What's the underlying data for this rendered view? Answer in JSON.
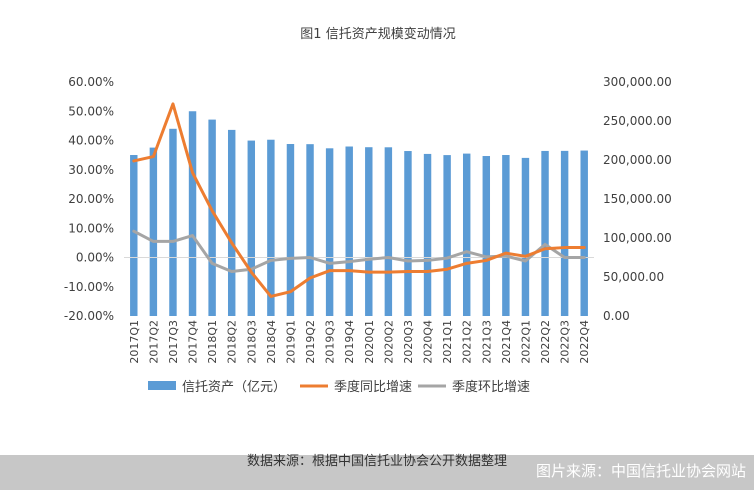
{
  "chart_data": {
    "type": "bar",
    "title": "图1 信托资产规模变动情况",
    "categories": [
      "2017Q1",
      "2017Q2",
      "2017Q3",
      "2017Q4",
      "2018Q1",
      "2018Q2",
      "2018Q3",
      "2018Q4",
      "2019Q1",
      "2019Q2",
      "2019Q3",
      "2019Q4",
      "2020Q1",
      "2020Q2",
      "2020Q3",
      "2020Q4",
      "2021Q1",
      "2021Q2",
      "2021Q3",
      "2021Q4",
      "2022Q1",
      "2022Q2",
      "2022Q3",
      "2022Q4"
    ],
    "left_axis": {
      "min": -0.2,
      "max": 0.6,
      "step": 0.1,
      "tick_labels": [
        "-20.00%",
        "-10.00%",
        "0.00%",
        "10.00%",
        "20.00%",
        "30.00%",
        "40.00%",
        "50.00%",
        "60.00%"
      ]
    },
    "right_axis": {
      "min": 0,
      "max": 300000,
      "step": 50000,
      "tick_labels": [
        "0.00",
        "50,000.00",
        "100,000.00",
        "150,000.00",
        "200,000.00",
        "250,000.00",
        "300,000.00"
      ]
    },
    "grid": false,
    "legend_position": "bottom",
    "series": [
      {
        "name": "信托资产（亿元）",
        "kind": "bar",
        "axis": "right",
        "color": "#5b9bd5",
        "values": [
          206400,
          215900,
          240000,
          262500,
          251800,
          238600,
          224900,
          226000,
          220500,
          220300,
          215000,
          217300,
          216400,
          216300,
          211500,
          207800,
          206300,
          208200,
          205100,
          206400,
          202700,
          211600,
          211700,
          212100
        ]
      },
      {
        "name": "季度同比增速",
        "kind": "line",
        "axis": "left",
        "color": "#ed7d31",
        "values": [
          0.33,
          0.345,
          0.525,
          0.29,
          0.16,
          0.05,
          -0.05,
          -0.133,
          -0.117,
          -0.07,
          -0.045,
          -0.045,
          -0.05,
          -0.05,
          -0.048,
          -0.048,
          -0.04,
          -0.02,
          -0.01,
          0.015,
          0.004,
          0.03,
          0.034,
          0.034
        ]
      },
      {
        "name": "季度环比增速",
        "kind": "line",
        "axis": "left",
        "color": "#a5a5a5",
        "values": [
          0.09,
          0.055,
          0.055,
          0.075,
          -0.02,
          -0.048,
          -0.04,
          -0.01,
          -0.003,
          0.0,
          -0.02,
          -0.014,
          -0.006,
          0.0,
          -0.012,
          -0.01,
          -0.002,
          0.02,
          0.002,
          0.005,
          -0.012,
          0.045,
          0.0,
          0.0
        ]
      }
    ]
  },
  "footer": {
    "source": "数据来源：根据中国信托业协会公开数据整理",
    "credit": "图片来源：中国信托业协会网站"
  }
}
